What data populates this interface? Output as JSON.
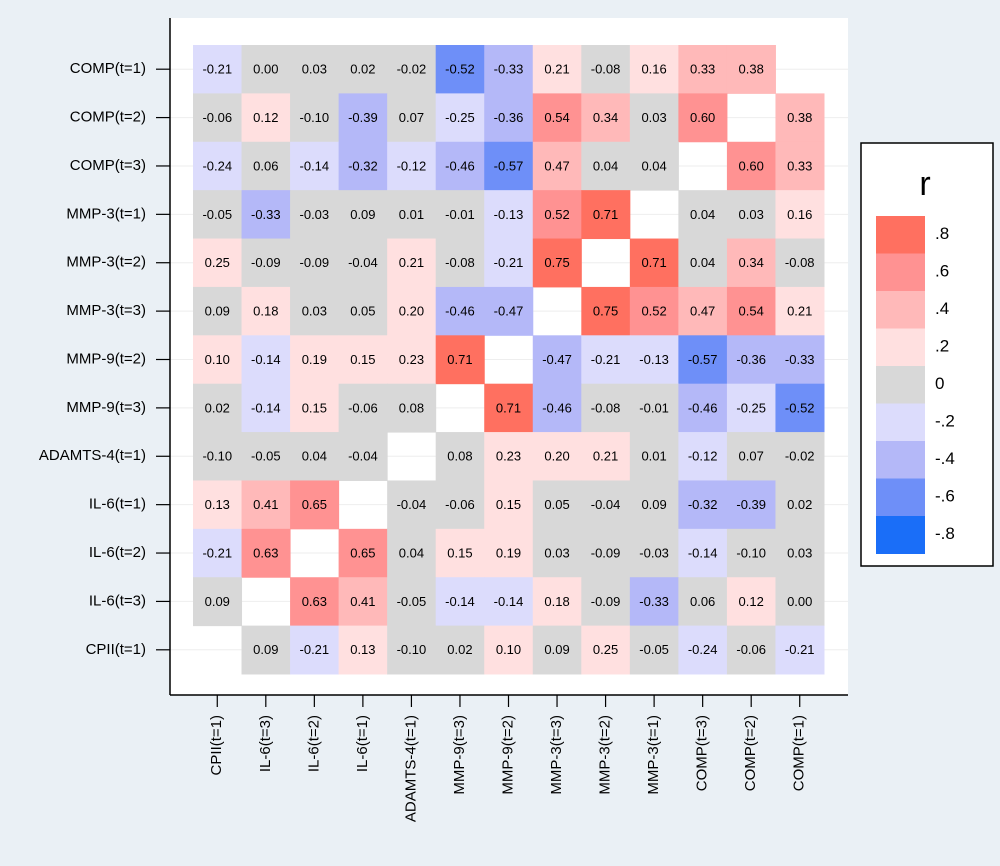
{
  "chart_data": {
    "type": "heatmap",
    "rows": [
      "COMP(t=1)",
      "COMP(t=2)",
      "COMP(t=3)",
      "MMP-3(t=1)",
      "MMP-3(t=2)",
      "MMP-3(t=3)",
      "MMP-9(t=2)",
      "MMP-9(t=3)",
      "ADAMTS-4(t=1)",
      "IL-6(t=1)",
      "IL-6(t=2)",
      "IL-6(t=3)",
      "CPII(t=1)"
    ],
    "columns": [
      "CPII(t=1)",
      "IL-6(t=3)",
      "IL-6(t=2)",
      "IL-6(t=1)",
      "ADAMTS-4(t=1)",
      "MMP-9(t=3)",
      "MMP-9(t=2)",
      "MMP-3(t=3)",
      "MMP-3(t=2)",
      "MMP-3(t=1)",
      "COMP(t=3)",
      "COMP(t=2)",
      "COMP(t=1)"
    ],
    "values": [
      [
        -0.21,
        0.0,
        0.03,
        0.02,
        -0.02,
        -0.52,
        -0.33,
        0.21,
        -0.08,
        0.16,
        0.33,
        0.38,
        null
      ],
      [
        -0.06,
        0.12,
        -0.1,
        -0.39,
        0.07,
        -0.25,
        -0.36,
        0.54,
        0.34,
        0.03,
        0.6,
        null,
        0.38
      ],
      [
        -0.24,
        0.06,
        -0.14,
        -0.32,
        -0.12,
        -0.46,
        -0.57,
        0.47,
        0.04,
        0.04,
        null,
        0.6,
        0.33
      ],
      [
        -0.05,
        -0.33,
        -0.03,
        0.09,
        0.01,
        -0.01,
        -0.13,
        0.52,
        0.71,
        null,
        0.04,
        0.03,
        0.16
      ],
      [
        0.25,
        -0.09,
        -0.09,
        -0.04,
        0.21,
        -0.08,
        -0.21,
        0.75,
        null,
        0.71,
        0.04,
        0.34,
        -0.08
      ],
      [
        0.09,
        0.18,
        0.03,
        0.05,
        0.2,
        -0.46,
        -0.47,
        null,
        0.75,
        0.52,
        0.47,
        0.54,
        0.21
      ],
      [
        0.1,
        -0.14,
        0.19,
        0.15,
        0.23,
        0.71,
        null,
        -0.47,
        -0.21,
        -0.13,
        -0.57,
        -0.36,
        -0.33
      ],
      [
        0.02,
        -0.14,
        0.15,
        -0.06,
        0.08,
        null,
        0.71,
        -0.46,
        -0.08,
        -0.01,
        -0.46,
        -0.25,
        -0.52
      ],
      [
        -0.1,
        -0.05,
        0.04,
        -0.04,
        null,
        0.08,
        0.23,
        0.2,
        0.21,
        0.01,
        -0.12,
        0.07,
        -0.02
      ],
      [
        0.13,
        0.41,
        0.65,
        null,
        -0.04,
        -0.06,
        0.15,
        0.05,
        -0.04,
        0.09,
        -0.32,
        -0.39,
        0.02
      ],
      [
        -0.21,
        0.63,
        null,
        0.65,
        0.04,
        0.15,
        0.19,
        0.03,
        -0.09,
        -0.03,
        -0.14,
        -0.1,
        0.03
      ],
      [
        0.09,
        null,
        0.63,
        0.41,
        -0.05,
        -0.14,
        -0.14,
        0.18,
        -0.09,
        -0.33,
        0.06,
        0.12,
        0.0
      ],
      [
        null,
        0.09,
        -0.21,
        0.13,
        -0.1,
        0.02,
        0.1,
        0.09,
        0.25,
        -0.05,
        -0.24,
        -0.06,
        -0.21
      ]
    ],
    "value_labels": [
      [
        "-0.21",
        "0.00",
        "0.03",
        "0.02",
        "-0.02",
        "-0.52",
        "-0.33",
        "0.21",
        "-0.08",
        "0.16",
        "0.33",
        "0.38",
        null
      ],
      [
        "-0.06",
        "0.12",
        "-0.10",
        "-0.39",
        "0.07",
        "-0.25",
        "-0.36",
        "0.54",
        "0.34",
        "0.03",
        "0.60",
        null,
        "0.38"
      ],
      [
        "-0.24",
        "0.06",
        "-0.14",
        "-0.32",
        "-0.12",
        "-0.46",
        "-0.57",
        "0.47",
        "0.04",
        "0.04",
        null,
        "0.60",
        "0.33"
      ],
      [
        "-0.05",
        "-0.33",
        "-0.03",
        "0.09",
        "0.01",
        "-0.01",
        "-0.13",
        "0.52",
        "0.71",
        null,
        "0.04",
        "0.03",
        "0.16"
      ],
      [
        "0.25",
        "-0.09",
        "-0.09",
        "-0.04",
        "0.21",
        "-0.08",
        "-0.21",
        "0.75",
        null,
        "0.71",
        "0.04",
        "0.34",
        "-0.08"
      ],
      [
        "0.09",
        "0.18",
        "0.03",
        "0.05",
        "0.20",
        "-0.46",
        "-0.47",
        null,
        "0.75",
        "0.52",
        "0.47",
        "0.54",
        "0.21"
      ],
      [
        "0.10",
        "-0.14",
        "0.19",
        "0.15",
        "0.23",
        "0.71",
        null,
        "-0.47",
        "-0.21",
        "-0.13",
        "-0.57",
        "-0.36",
        "-0.33"
      ],
      [
        "0.02",
        "-0.14",
        "0.15",
        "-0.06",
        "0.08",
        null,
        "0.71",
        "-0.46",
        "-0.08",
        "-0.01",
        "-0.46",
        "-0.25",
        "-0.52"
      ],
      [
        "-0.10",
        "-0.05",
        "0.04",
        "-0.04",
        null,
        "0.08",
        "0.23",
        "0.20",
        "0.21",
        "0.01",
        "-0.12",
        "0.07",
        "-0.02"
      ],
      [
        "0.13",
        "0.41",
        "0.65",
        null,
        "-0.04",
        "-0.06",
        "0.15",
        "0.05",
        "-0.04",
        "0.09",
        "-0.32",
        "-0.39",
        "0.02"
      ],
      [
        "-0.21",
        "0.63",
        null,
        "0.65",
        "0.04",
        "0.15",
        "0.19",
        "0.03",
        "-0.09",
        "-0.03",
        "-0.14",
        "-0.10",
        "0.03"
      ],
      [
        "0.09",
        null,
        "0.63",
        "0.41",
        "-0.05",
        "-0.14",
        "-0.14",
        "0.18",
        "-0.09",
        "-0.33",
        "0.06",
        "0.12",
        "0.00"
      ],
      [
        null,
        "0.09",
        "-0.21",
        "0.13",
        "-0.10",
        "0.02",
        "0.10",
        "0.09",
        "0.25",
        "-0.05",
        "-0.24",
        "-0.06",
        "-0.21"
      ]
    ],
    "legend_title": "r",
    "legend_ticks": [
      {
        "value": 0.8,
        "label": ".8"
      },
      {
        "value": 0.6,
        "label": ".6"
      },
      {
        "value": 0.4,
        "label": ".4"
      },
      {
        "value": 0.2,
        "label": ".2"
      },
      0,
      {
        "value": -0.2,
        "label": "-.2"
      },
      {
        "value": -0.4,
        "label": "-.4"
      },
      {
        "value": -0.6,
        "label": "-.6"
      },
      {
        "value": -0.8,
        "label": "-.8"
      }
    ],
    "legend_colors": [
      "#ff7060",
      "#ff9292",
      "#ffb9b9",
      "#ffe0e0",
      "#d8d8d8",
      "#dcdcfc",
      "#b4b8f8",
      "#6e8ff8",
      "#1a6ef8"
    ],
    "grid": true
  }
}
